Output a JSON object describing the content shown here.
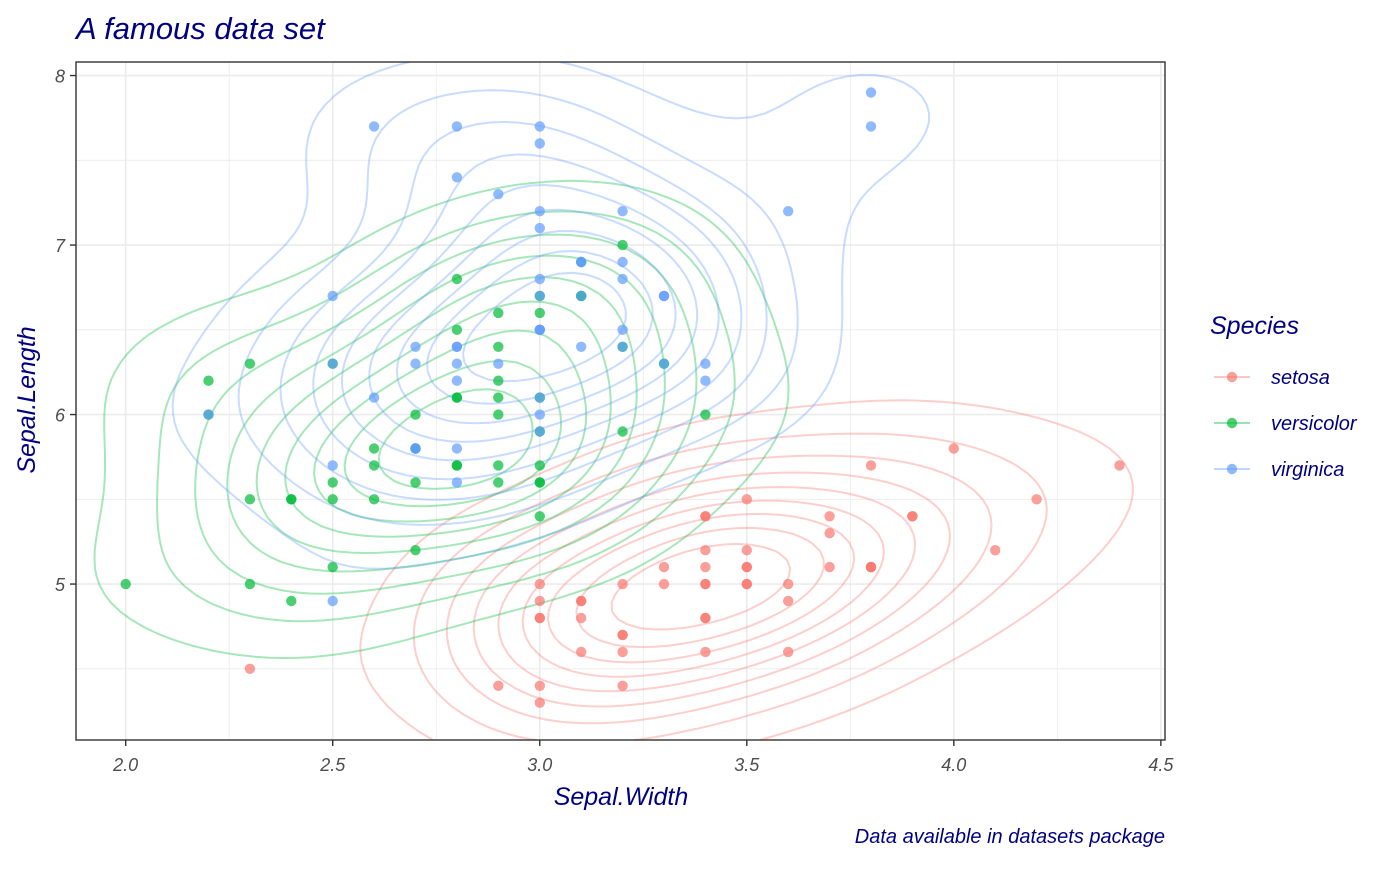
{
  "chart_data": {
    "type": "scatter",
    "title": "A famous data set",
    "xlabel": "Sepal.Width",
    "ylabel": "Sepal.Length",
    "caption": "Data available in datasets package",
    "xlim": [
      1.88,
      4.51
    ],
    "ylim": [
      4.08,
      8.08
    ],
    "x_ticks": [
      2.0,
      2.5,
      3.0,
      3.5,
      4.0,
      4.5
    ],
    "x_tick_labels": [
      "2.0",
      "2.5",
      "3.0",
      "3.5",
      "4.0",
      "4.5"
    ],
    "y_ticks": [
      5,
      6,
      7,
      8
    ],
    "y_tick_labels": [
      "5",
      "6",
      "7",
      "8"
    ],
    "grid": true,
    "overlay": "2D density contours per series",
    "legend": {
      "title": "Species",
      "position": "right"
    },
    "series": [
      {
        "name": "setosa",
        "color": "#F8766D",
        "points": [
          [
            3.5,
            5.1
          ],
          [
            3.0,
            4.9
          ],
          [
            3.2,
            4.7
          ],
          [
            3.1,
            4.6
          ],
          [
            3.6,
            5.0
          ],
          [
            3.9,
            5.4
          ],
          [
            3.4,
            4.6
          ],
          [
            3.4,
            5.0
          ],
          [
            2.9,
            4.4
          ],
          [
            3.1,
            4.9
          ],
          [
            3.7,
            5.4
          ],
          [
            3.4,
            4.8
          ],
          [
            3.0,
            4.8
          ],
          [
            3.0,
            4.3
          ],
          [
            4.0,
            5.8
          ],
          [
            4.4,
            5.7
          ],
          [
            3.9,
            5.4
          ],
          [
            3.5,
            5.1
          ],
          [
            3.8,
            5.7
          ],
          [
            3.8,
            5.1
          ],
          [
            3.4,
            5.4
          ],
          [
            3.7,
            5.1
          ],
          [
            3.6,
            4.6
          ],
          [
            3.3,
            5.1
          ],
          [
            3.4,
            4.8
          ],
          [
            3.0,
            5.0
          ],
          [
            3.4,
            5.0
          ],
          [
            3.5,
            5.2
          ],
          [
            3.4,
            5.2
          ],
          [
            3.2,
            4.7
          ],
          [
            3.1,
            4.8
          ],
          [
            3.4,
            5.4
          ],
          [
            4.1,
            5.2
          ],
          [
            4.2,
            5.5
          ],
          [
            3.1,
            4.9
          ],
          [
            3.2,
            5.0
          ],
          [
            3.5,
            5.5
          ],
          [
            3.6,
            4.9
          ],
          [
            3.0,
            4.4
          ],
          [
            3.4,
            5.1
          ],
          [
            3.5,
            5.0
          ],
          [
            2.3,
            4.5
          ],
          [
            3.2,
            4.4
          ],
          [
            3.5,
            5.0
          ],
          [
            3.8,
            5.1
          ],
          [
            3.0,
            4.8
          ],
          [
            3.8,
            5.1
          ],
          [
            3.2,
            4.6
          ],
          [
            3.7,
            5.3
          ],
          [
            3.3,
            5.0
          ]
        ]
      },
      {
        "name": "versicolor",
        "color": "#00BA38",
        "points": [
          [
            3.2,
            7.0
          ],
          [
            3.2,
            6.4
          ],
          [
            3.1,
            6.9
          ],
          [
            2.3,
            5.5
          ],
          [
            2.8,
            6.5
          ],
          [
            2.8,
            5.7
          ],
          [
            3.3,
            6.3
          ],
          [
            2.4,
            4.9
          ],
          [
            2.9,
            6.6
          ],
          [
            2.7,
            5.2
          ],
          [
            2.0,
            5.0
          ],
          [
            3.0,
            5.9
          ],
          [
            2.2,
            6.0
          ],
          [
            2.9,
            6.1
          ],
          [
            2.9,
            5.6
          ],
          [
            3.1,
            6.7
          ],
          [
            3.0,
            5.6
          ],
          [
            2.7,
            5.8
          ],
          [
            2.2,
            6.2
          ],
          [
            2.5,
            5.6
          ],
          [
            3.2,
            5.9
          ],
          [
            2.8,
            6.1
          ],
          [
            2.5,
            6.3
          ],
          [
            2.8,
            6.1
          ],
          [
            2.9,
            6.4
          ],
          [
            3.0,
            6.6
          ],
          [
            2.8,
            6.8
          ],
          [
            3.0,
            6.7
          ],
          [
            2.9,
            6.0
          ],
          [
            2.6,
            5.7
          ],
          [
            2.4,
            5.5
          ],
          [
            2.4,
            5.5
          ],
          [
            2.7,
            5.8
          ],
          [
            2.7,
            6.0
          ],
          [
            3.0,
            5.4
          ],
          [
            3.4,
            6.0
          ],
          [
            3.1,
            6.7
          ],
          [
            2.3,
            6.3
          ],
          [
            3.0,
            5.6
          ],
          [
            2.5,
            5.5
          ],
          [
            2.6,
            5.5
          ],
          [
            3.0,
            6.1
          ],
          [
            2.6,
            5.8
          ],
          [
            2.3,
            5.0
          ],
          [
            2.7,
            5.6
          ],
          [
            3.0,
            5.7
          ],
          [
            2.9,
            5.7
          ],
          [
            2.9,
            6.2
          ],
          [
            2.5,
            5.1
          ],
          [
            2.8,
            5.7
          ]
        ]
      },
      {
        "name": "virginica",
        "color": "#619CFF",
        "points": [
          [
            3.3,
            6.3
          ],
          [
            2.7,
            5.8
          ],
          [
            3.0,
            7.1
          ],
          [
            2.9,
            6.3
          ],
          [
            3.0,
            6.5
          ],
          [
            3.0,
            7.6
          ],
          [
            2.5,
            4.9
          ],
          [
            2.9,
            7.3
          ],
          [
            2.5,
            6.7
          ],
          [
            3.6,
            7.2
          ],
          [
            3.2,
            6.5
          ],
          [
            2.7,
            6.4
          ],
          [
            3.0,
            6.8
          ],
          [
            2.5,
            5.7
          ],
          [
            2.8,
            5.8
          ],
          [
            3.2,
            6.4
          ],
          [
            3.0,
            6.5
          ],
          [
            3.8,
            7.7
          ],
          [
            2.6,
            7.7
          ],
          [
            2.2,
            6.0
          ],
          [
            3.2,
            6.9
          ],
          [
            2.8,
            5.6
          ],
          [
            2.8,
            7.7
          ],
          [
            2.7,
            6.3
          ],
          [
            3.3,
            6.7
          ],
          [
            3.2,
            7.2
          ],
          [
            2.8,
            6.2
          ],
          [
            3.0,
            6.1
          ],
          [
            2.8,
            6.4
          ],
          [
            3.0,
            7.2
          ],
          [
            2.8,
            7.4
          ],
          [
            3.8,
            7.9
          ],
          [
            2.8,
            6.4
          ],
          [
            2.8,
            6.3
          ],
          [
            2.6,
            6.1
          ],
          [
            3.0,
            7.7
          ],
          [
            3.4,
            6.3
          ],
          [
            3.1,
            6.4
          ],
          [
            3.0,
            6.0
          ],
          [
            3.1,
            6.9
          ],
          [
            3.1,
            6.7
          ],
          [
            3.1,
            6.9
          ],
          [
            2.7,
            5.8
          ],
          [
            3.2,
            6.8
          ],
          [
            3.3,
            6.7
          ],
          [
            3.0,
            6.7
          ],
          [
            2.5,
            6.3
          ],
          [
            3.0,
            6.5
          ],
          [
            3.4,
            6.2
          ],
          [
            3.0,
            5.9
          ]
        ]
      }
    ]
  }
}
